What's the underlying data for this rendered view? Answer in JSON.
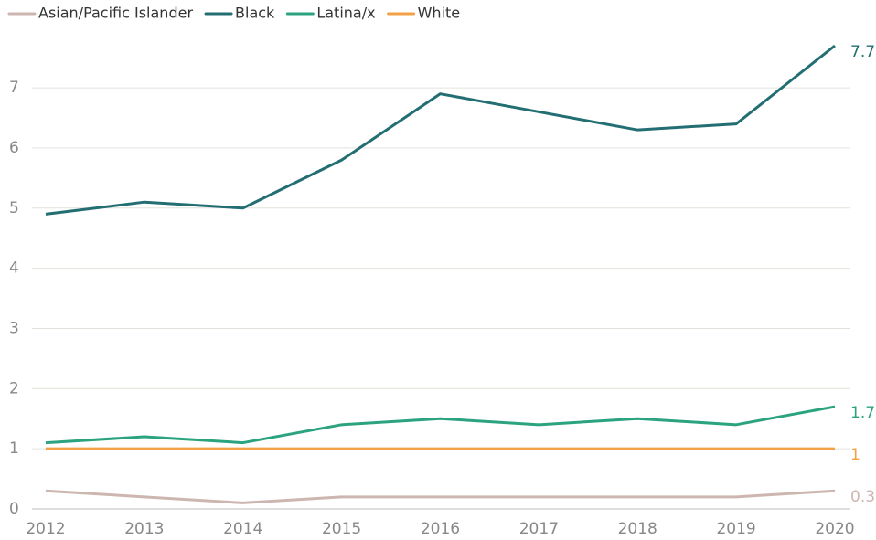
{
  "chart_data": {
    "type": "line",
    "x": [
      2012,
      2013,
      2014,
      2015,
      2016,
      2017,
      2018,
      2019,
      2020
    ],
    "xlim": [
      2012,
      2020
    ],
    "xticks": [
      2012,
      2013,
      2014,
      2015,
      2016,
      2017,
      2018,
      2019,
      2020
    ],
    "ylim": [
      0,
      7.7
    ],
    "yticks": [
      0,
      1,
      2,
      3,
      4,
      5,
      6,
      7
    ],
    "grid": true,
    "legend": "top-left",
    "series": [
      {
        "name": "Asian/Pacific Islander",
        "color": "#cdb6b0",
        "values": [
          0.3,
          0.2,
          0.1,
          0.2,
          0.2,
          0.2,
          0.2,
          0.2,
          0.3
        ]
      },
      {
        "name": "Black",
        "color": "#226e72",
        "values": [
          4.9,
          5.1,
          5.0,
          5.8,
          6.9,
          6.6,
          6.3,
          6.4,
          7.7
        ]
      },
      {
        "name": "Latina/x",
        "color": "#2ba37e",
        "values": [
          1.1,
          1.2,
          1.1,
          1.4,
          1.5,
          1.4,
          1.5,
          1.4,
          1.7
        ]
      },
      {
        "name": "White",
        "color": "#f3a046",
        "values": [
          1,
          1,
          1,
          1,
          1,
          1,
          1,
          1,
          1
        ]
      }
    ]
  }
}
